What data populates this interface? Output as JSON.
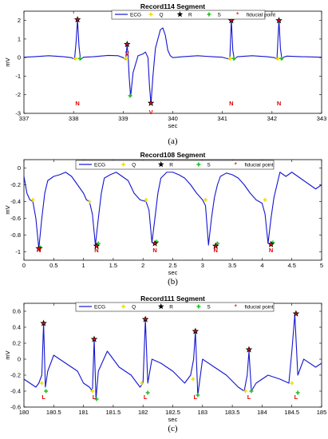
{
  "chart_data": [
    {
      "type": "line",
      "title": "Record114 Segment",
      "xlabel": "sec",
      "ylabel": "mV",
      "xlim": [
        337,
        343
      ],
      "ylim": [
        -3,
        2.5
      ],
      "xticks": [
        "337",
        "338",
        "339",
        "340",
        "341",
        "342",
        "343"
      ],
      "yticks": [
        "-3",
        "-2",
        "-1",
        "0",
        "1",
        "2"
      ],
      "legend": [
        "ECG",
        "Q",
        "R",
        "S",
        "fiducial point"
      ],
      "legend_position": "top",
      "caption": "(a)",
      "colors": {
        "ecg": "#1515d0",
        "q": "#f0e000",
        "r": "#000000",
        "s": "#20c020",
        "fiducial": "#e00000"
      },
      "ecg": {
        "x": [
          337.0,
          337.2,
          337.5,
          337.8,
          337.95,
          338.02,
          338.05,
          338.08,
          338.11,
          338.14,
          338.2,
          338.4,
          338.7,
          338.9,
          339.0,
          339.05,
          339.08,
          339.1,
          339.12,
          339.15,
          339.2,
          339.3,
          339.4,
          339.45,
          339.5,
          339.53,
          339.56,
          339.6,
          339.65,
          339.7,
          339.75,
          339.8,
          339.85,
          339.9,
          339.95,
          340.0,
          340.2,
          340.5,
          340.8,
          341.0,
          341.1,
          341.15,
          341.18,
          341.21,
          341.24,
          341.3,
          341.6,
          341.9,
          342.05,
          342.1,
          342.14,
          342.17,
          342.2,
          342.23,
          342.3,
          342.6,
          343.0
        ],
        "y": [
          0.02,
          0.05,
          0.1,
          0.05,
          0.0,
          -0.08,
          0.8,
          2.05,
          0.6,
          -0.1,
          0.02,
          0.05,
          0.12,
          0.1,
          0.0,
          -0.1,
          0.7,
          0.1,
          -1.0,
          -2.1,
          -0.8,
          0.1,
          0.2,
          0.3,
          0.0,
          -1.5,
          -2.5,
          -1.0,
          0.5,
          1.0,
          1.5,
          1.6,
          1.2,
          0.4,
          0.1,
          0.0,
          0.05,
          0.1,
          0.05,
          0.02,
          -0.05,
          -0.08,
          2.05,
          0.4,
          -0.1,
          0.05,
          0.1,
          0.05,
          0.0,
          -0.08,
          2.05,
          0.5,
          -0.1,
          0.02,
          0.08,
          0.05,
          0.02
        ]
      },
      "q_points": [
        [
          338.04,
          -0.05
        ],
        [
          339.06,
          -0.05
        ],
        [
          341.16,
          -0.05
        ],
        [
          342.12,
          -0.05
        ]
      ],
      "r_points": [
        [
          338.08,
          2.05
        ],
        [
          339.08,
          0.72
        ],
        [
          339.56,
          -2.45
        ],
        [
          341.18,
          2.0
        ],
        [
          342.14,
          2.0
        ]
      ],
      "s_points": [
        [
          338.13,
          -0.05
        ],
        [
          339.14,
          -2.05
        ],
        [
          341.23,
          -0.05
        ],
        [
          342.19,
          -0.05
        ]
      ],
      "beat_labels": [
        {
          "x": 338.08,
          "text": "N"
        },
        {
          "x": 339.08,
          "text": "V"
        },
        {
          "x": 339.56,
          "text": "V"
        },
        {
          "x": 341.18,
          "text": "N"
        },
        {
          "x": 342.14,
          "text": "N"
        }
      ]
    },
    {
      "type": "line",
      "title": "Record108 Segment",
      "xlabel": "sec",
      "ylabel": "mV",
      "xlim": [
        0,
        5
      ],
      "ylim": [
        -1.1,
        0.1
      ],
      "xticks": [
        "0",
        "0.5",
        "1",
        "1.5",
        "2",
        "2.5",
        "3",
        "3.5",
        "4",
        "4.5",
        "5"
      ],
      "yticks": [
        "-1",
        "-0.8",
        "-0.6",
        "-0.4",
        "-0.2",
        "0"
      ],
      "legend": [
        "ECG",
        "Q",
        "R",
        "S",
        "fiducial point"
      ],
      "legend_position": "top",
      "caption": "(b)",
      "ecg": {
        "x": [
          0.0,
          0.05,
          0.1,
          0.15,
          0.2,
          0.25,
          0.3,
          0.35,
          0.4,
          0.5,
          0.6,
          0.7,
          0.8,
          0.9,
          1.0,
          1.05,
          1.1,
          1.15,
          1.2,
          1.25,
          1.3,
          1.35,
          1.45,
          1.55,
          1.65,
          1.75,
          1.85,
          1.95,
          2.05,
          2.1,
          2.15,
          2.2,
          2.25,
          2.3,
          2.4,
          2.5,
          2.6,
          2.7,
          2.8,
          2.9,
          3.0,
          3.05,
          3.1,
          3.15,
          3.2,
          3.25,
          3.3,
          3.4,
          3.5,
          3.6,
          3.7,
          3.8,
          3.9,
          4.0,
          4.05,
          4.1,
          4.15,
          4.2,
          4.25,
          4.3,
          4.4,
          4.5,
          4.6,
          4.7,
          4.8,
          4.9,
          5.0
        ],
        "y": [
          -0.1,
          -0.3,
          -0.38,
          -0.4,
          -0.6,
          -0.96,
          -0.6,
          -0.3,
          -0.15,
          -0.1,
          -0.08,
          -0.05,
          -0.1,
          -0.2,
          -0.3,
          -0.38,
          -0.4,
          -0.55,
          -0.92,
          -0.6,
          -0.3,
          -0.12,
          -0.08,
          -0.05,
          -0.1,
          -0.15,
          -0.3,
          -0.38,
          -0.4,
          -0.5,
          -0.89,
          -0.6,
          -0.3,
          -0.12,
          -0.05,
          -0.05,
          -0.08,
          -0.12,
          -0.2,
          -0.3,
          -0.38,
          -0.45,
          -0.92,
          -0.6,
          -0.35,
          -0.2,
          -0.1,
          -0.06,
          -0.08,
          -0.12,
          -0.2,
          -0.3,
          -0.38,
          -0.42,
          -0.55,
          -0.9,
          -0.6,
          -0.35,
          -0.2,
          -0.05,
          -0.1,
          -0.05,
          -0.1,
          -0.15,
          -0.2,
          -0.25,
          -0.2
        ]
      },
      "q_points": [
        [
          0.15,
          -0.38
        ],
        [
          1.1,
          -0.4
        ],
        [
          2.05,
          -0.38
        ],
        [
          3.05,
          -0.38
        ],
        [
          4.05,
          -0.38
        ]
      ],
      "r_points": [
        [
          0.25,
          -0.96
        ],
        [
          1.22,
          -0.93
        ],
        [
          2.2,
          -0.9
        ],
        [
          3.22,
          -0.93
        ],
        [
          4.15,
          -0.91
        ]
      ],
      "s_points": [
        [
          0.28,
          -0.95
        ],
        [
          1.25,
          -0.9
        ],
        [
          2.23,
          -0.88
        ],
        [
          3.25,
          -0.9
        ],
        [
          4.18,
          -0.89
        ]
      ],
      "beat_labels": [
        {
          "x": 0.25,
          "text": "N"
        },
        {
          "x": 1.22,
          "text": "N"
        },
        {
          "x": 2.2,
          "text": "N"
        },
        {
          "x": 3.22,
          "text": "N"
        },
        {
          "x": 4.15,
          "text": "N"
        }
      ]
    },
    {
      "type": "line",
      "title": "Record111 Segment",
      "xlabel": "sec",
      "ylabel": "mV",
      "xlim": [
        180,
        185
      ],
      "ylim": [
        -0.6,
        0.7
      ],
      "xticks": [
        "180",
        "180.5",
        "181",
        "181.5",
        "182",
        "182.5",
        "183",
        "183.5",
        "184",
        "184.5",
        "185"
      ],
      "yticks": [
        "-0.6",
        "-0.4",
        "-0.2",
        "0",
        "0.2",
        "0.4",
        "0.6"
      ],
      "legend": [
        "ECG",
        "Q",
        "R",
        "S",
        "fiducial point"
      ],
      "legend_position": "top",
      "caption": "(c)",
      "ecg": {
        "x": [
          180.0,
          180.1,
          180.2,
          180.25,
          180.3,
          180.33,
          180.36,
          180.4,
          180.5,
          180.7,
          180.9,
          181.0,
          181.1,
          181.15,
          181.18,
          181.21,
          181.25,
          181.4,
          181.6,
          181.8,
          181.95,
          182.0,
          182.04,
          182.08,
          182.15,
          182.3,
          182.5,
          182.7,
          182.8,
          182.85,
          182.88,
          182.92,
          183.0,
          183.2,
          183.4,
          183.6,
          183.7,
          183.75,
          183.78,
          183.82,
          183.9,
          184.1,
          184.3,
          184.45,
          184.5,
          184.55,
          184.6,
          184.7,
          184.9,
          185.0
        ],
        "y": [
          -0.25,
          -0.3,
          -0.35,
          -0.3,
          -0.2,
          0.45,
          -0.35,
          -0.15,
          0.05,
          -0.05,
          -0.15,
          -0.3,
          -0.35,
          -0.4,
          0.25,
          -0.5,
          -0.15,
          0.1,
          -0.1,
          -0.2,
          -0.35,
          -0.3,
          0.5,
          -0.3,
          0.0,
          -0.05,
          -0.15,
          -0.3,
          -0.2,
          0.0,
          0.35,
          -0.45,
          0.0,
          -0.1,
          -0.2,
          -0.35,
          -0.4,
          -0.2,
          0.1,
          -0.4,
          -0.3,
          -0.2,
          -0.25,
          -0.3,
          0.1,
          0.56,
          -0.2,
          0.0,
          -0.1,
          -0.05
        ]
      },
      "q_points": [
        [
          180.3,
          -0.3
        ],
        [
          181.15,
          -0.4
        ],
        [
          181.98,
          -0.3
        ],
        [
          182.84,
          -0.25
        ],
        [
          183.72,
          -0.4
        ],
        [
          184.5,
          -0.3
        ]
      ],
      "r_points": [
        [
          180.33,
          0.45
        ],
        [
          181.18,
          0.25
        ],
        [
          182.04,
          0.5
        ],
        [
          182.88,
          0.35
        ],
        [
          183.78,
          0.12
        ],
        [
          184.57,
          0.57
        ]
      ],
      "s_points": [
        [
          180.37,
          -0.4
        ],
        [
          181.22,
          -0.5
        ],
        [
          182.08,
          -0.42
        ],
        [
          182.92,
          -0.45
        ],
        [
          183.82,
          -0.4
        ],
        [
          184.6,
          -0.42
        ]
      ],
      "beat_labels": [
        {
          "x": 180.33,
          "text": "L"
        },
        {
          "x": 181.18,
          "text": "L"
        },
        {
          "x": 182.04,
          "text": "L"
        },
        {
          "x": 182.88,
          "text": "L"
        },
        {
          "x": 183.78,
          "text": "L"
        },
        {
          "x": 184.57,
          "text": "L"
        }
      ]
    }
  ]
}
